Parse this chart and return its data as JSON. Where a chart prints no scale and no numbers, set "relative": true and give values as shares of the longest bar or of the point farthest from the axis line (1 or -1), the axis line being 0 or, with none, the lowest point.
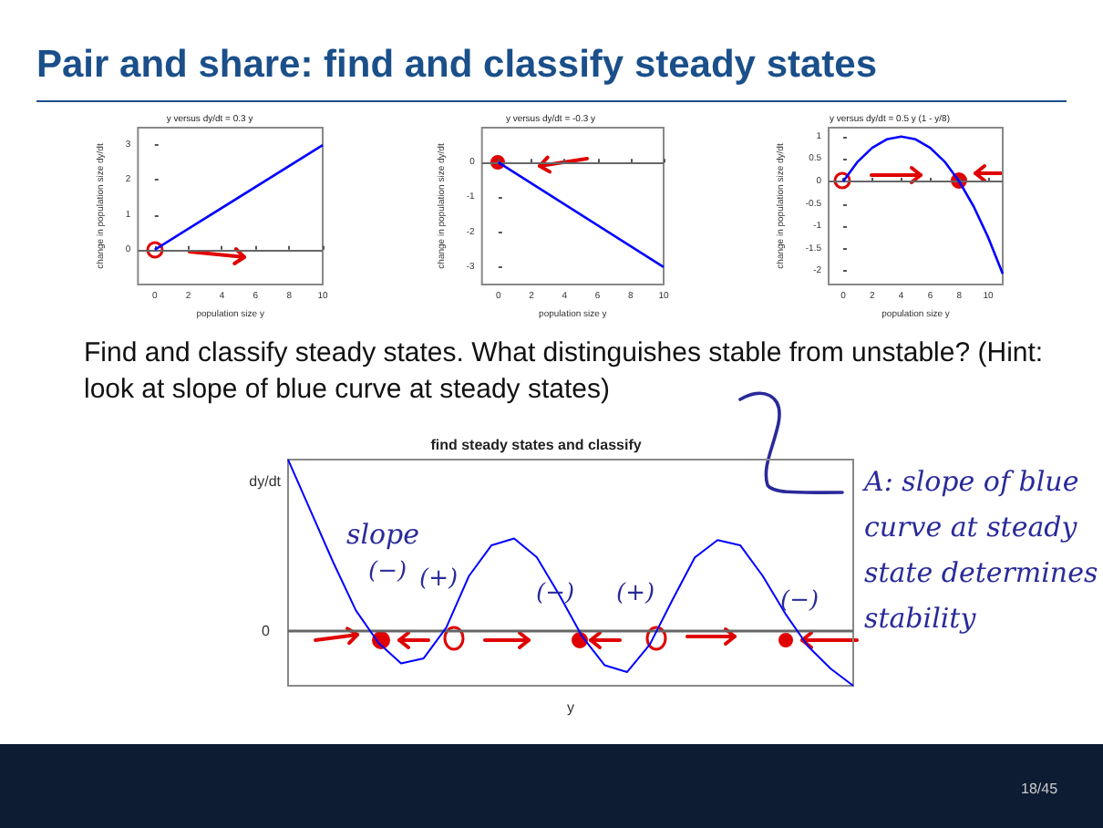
{
  "chart_data": [
    {
      "type": "other",
      "title": "Pair and share: find and classify steady states",
      "annotations": [
        "Find and classify steady states. What distinguishes stable from unstable? (Hint: look at slope of blue curve at steady states)",
        "18/45"
      ]
    },
    {
      "type": "line",
      "title": "y versus dy/dt = 0.3 y",
      "xlabel": "population size y",
      "ylabel": "change in population size dy/dt",
      "x": [
        0,
        10
      ],
      "series": [
        {
          "color": "#0000ff",
          "values": [
            0,
            3
          ]
        }
      ],
      "xlim": [
        -1,
        10
      ],
      "xticks": [
        0,
        2,
        4,
        6,
        8,
        10
      ],
      "ylim": [
        -1,
        3.5
      ],
      "yticks": [
        0,
        1,
        2,
        3
      ],
      "ref_lines": [
        {
          "axis": "y",
          "value": 0,
          "color": "#666666"
        }
      ]
    },
    {
      "type": "line",
      "title": "y versus dy/dt = -0.3 y",
      "xlabel": "population size y",
      "ylabel": "change in population size dy/dt",
      "x": [
        0,
        10
      ],
      "series": [
        {
          "color": "#0000ff",
          "values": [
            0,
            -3
          ]
        }
      ],
      "xlim": [
        -1,
        10
      ],
      "xticks": [
        0,
        2,
        4,
        6,
        8,
        10
      ],
      "ylim": [
        -3.5,
        1
      ],
      "yticks": [
        -3,
        -2,
        -1,
        0
      ],
      "ref_lines": [
        {
          "axis": "y",
          "value": 0,
          "color": "#666666"
        }
      ]
    },
    {
      "type": "line",
      "title": "y versus dy/dt = 0.5 y (1 - y/8)",
      "xlabel": "population size y",
      "ylabel": "change in population size dy/dt",
      "x": [
        0,
        1,
        2,
        3,
        4,
        5,
        6,
        7,
        8,
        9,
        10,
        11
      ],
      "series": [
        {
          "color": "#0000ff",
          "values": [
            0,
            0.44,
            0.75,
            0.94,
            1,
            0.94,
            0.75,
            0.44,
            0,
            -0.56,
            -1.25,
            -2.06
          ]
        }
      ],
      "xlim": [
        -1,
        11
      ],
      "xticks": [
        0,
        2,
        4,
        6,
        8,
        10
      ],
      "ylim": [
        -2.3,
        1.2
      ],
      "yticks": [
        -2,
        -1.5,
        -1,
        -0.5,
        0,
        0.5,
        1
      ],
      "ref_lines": [
        {
          "axis": "y",
          "value": 0,
          "color": "#666666"
        }
      ]
    },
    {
      "type": "line",
      "relative": true,
      "title": "find steady states and classify",
      "xlabel": "y",
      "ylabel": "dy/dt",
      "tick_labels": false,
      "categories": [
        null,
        null,
        null,
        null,
        null,
        null,
        null,
        null,
        null,
        null,
        null,
        null,
        null,
        null,
        null,
        null,
        null,
        null,
        null,
        null,
        null,
        null,
        null,
        null,
        null,
        null
      ],
      "series": [
        {
          "color": "#0000ff",
          "values": [
            1,
            0.7,
            0.4,
            0.12,
            -0.07,
            -0.19,
            -0.16,
            0.02,
            0.32,
            0.5,
            0.54,
            0.43,
            0.21,
            -0.03,
            -0.2,
            -0.24,
            -0.08,
            0.18,
            0.43,
            0.53,
            0.5,
            0.32,
            0.1,
            -0.09,
            -0.22,
            -0.32
          ]
        }
      ],
      "ref_lines": [
        {
          "axis": "y",
          "value": 0,
          "label": "0",
          "color": "#666666"
        }
      ],
      "annotations": [
        "slope",
        "(−)",
        "(+)",
        "(−)",
        "(+)",
        "(−)",
        "A: slope of blue curve at steady state determines stability"
      ]
    }
  ]
}
